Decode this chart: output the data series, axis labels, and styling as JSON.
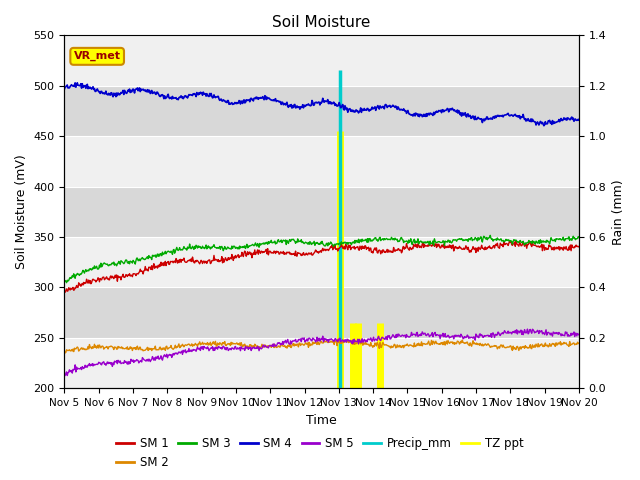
{
  "title": "Soil Moisture",
  "xlabel": "Time",
  "ylabel_left": "Soil Moisture (mV)",
  "ylabel_right": "Rain (mm)",
  "ylim_left": [
    200,
    550
  ],
  "ylim_right": [
    0.0,
    1.4
  ],
  "xlim": [
    0,
    15
  ],
  "x_tick_labels": [
    "Nov 5",
    "Nov 6",
    "Nov 7",
    "Nov 8",
    "Nov 9",
    "Nov 10",
    "Nov 11",
    "Nov 12",
    "Nov 13",
    "Nov 14",
    "Nov 15",
    "Nov 16",
    "Nov 17",
    "Nov 18",
    "Nov 19",
    "Nov 20"
  ],
  "bg_light": "#f0f0f0",
  "bg_dark": "#d8d8d8",
  "figure_bg": "#ffffff",
  "sm1_color": "#cc0000",
  "sm2_color": "#dd8800",
  "sm3_color": "#00aa00",
  "sm4_color": "#0000cc",
  "sm5_color": "#9900cc",
  "precip_color": "#00cccc",
  "tz_color": "#ffff00",
  "vr_met_bg": "#ffff00",
  "vr_met_border": "#cc8800",
  "vr_met_text": "#990000",
  "yticks": [
    200,
    250,
    300,
    350,
    400,
    450,
    500,
    550
  ],
  "yticks_right": [
    0.0,
    0.2,
    0.4,
    0.6,
    0.8,
    1.0,
    1.2,
    1.4
  ]
}
